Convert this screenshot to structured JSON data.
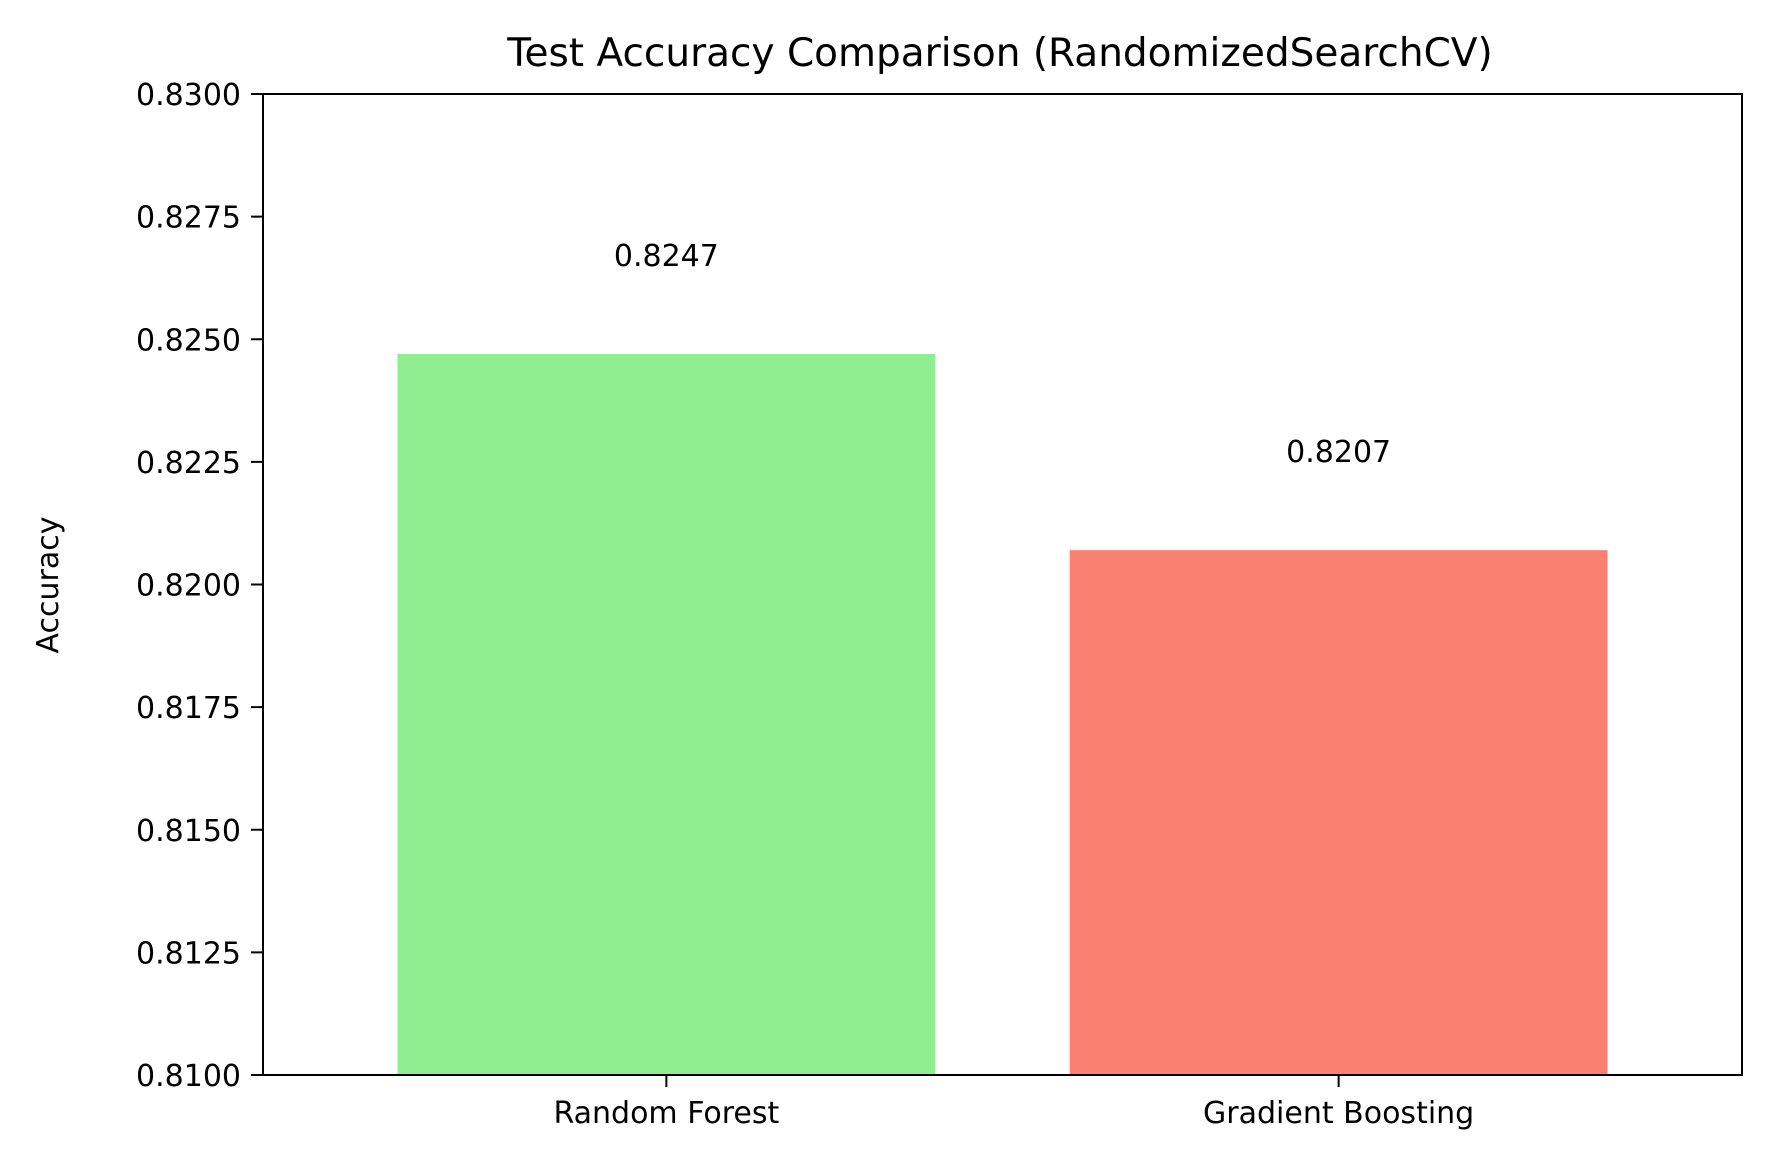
{
  "chart_data": {
    "type": "bar",
    "title": "Test Accuracy Comparison (RandomizedSearchCV)",
    "xlabel": "",
    "ylabel": "Accuracy",
    "categories": [
      "Random Forest",
      "Gradient Boosting"
    ],
    "values": [
      0.8247,
      0.8207
    ],
    "value_labels": [
      "0.8247",
      "0.8207"
    ],
    "colors": [
      "#90ee90",
      "#fa8072"
    ],
    "ylim": [
      0.81,
      0.83
    ],
    "yticks": [
      0.81,
      0.8125,
      0.815,
      0.8175,
      0.82,
      0.8225,
      0.825,
      0.8275,
      0.83
    ],
    "ytick_labels": [
      "0.8100",
      "0.8125",
      "0.8150",
      "0.8175",
      "0.8200",
      "0.8225",
      "0.8250",
      "0.8275",
      "0.8300"
    ],
    "grid": false,
    "legend": false
  }
}
